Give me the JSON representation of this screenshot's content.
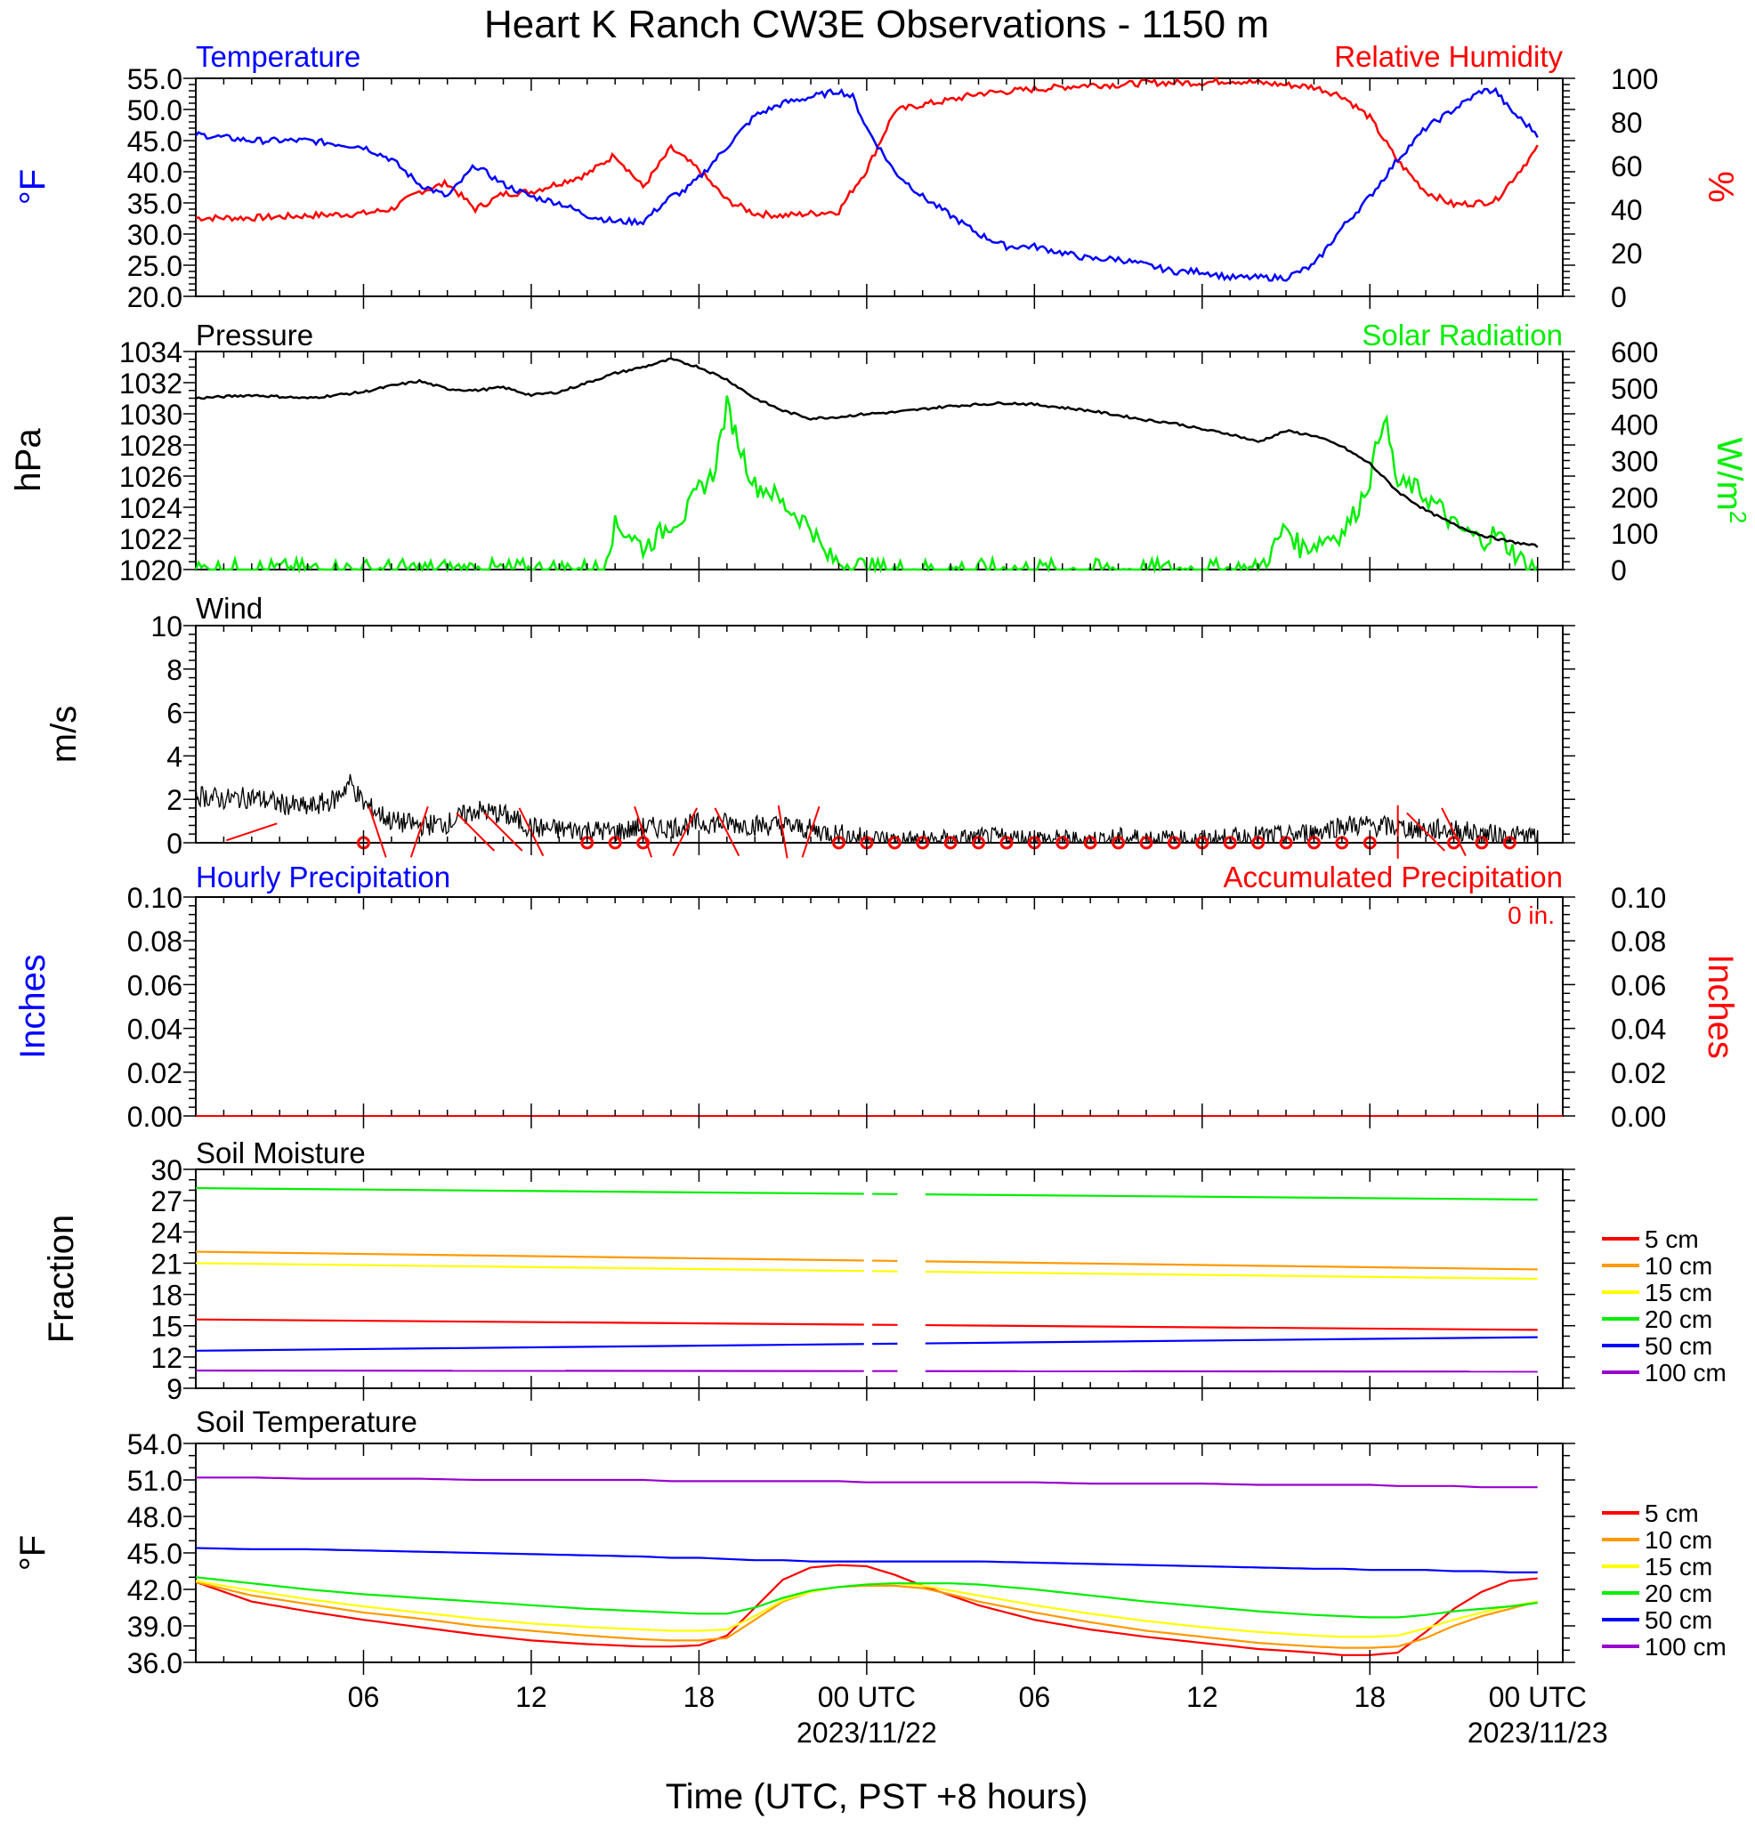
{
  "title": "Heart K Ranch CW3E Observations - 1150 m",
  "x_axis": {
    "label": "Time (UTC, PST +8 hours)",
    "ticks": [
      {
        "h": 6,
        "label": "06"
      },
      {
        "h": 12,
        "label": "12"
      },
      {
        "h": 18,
        "label": "18"
      },
      {
        "h": 24,
        "label": "00 UTC",
        "date": "2023/11/22"
      },
      {
        "h": 30,
        "label": "06"
      },
      {
        "h": 36,
        "label": "12"
      },
      {
        "h": 42,
        "label": "18"
      },
      {
        "h": 48,
        "label": "00 UTC",
        "date": "2023/11/23"
      }
    ]
  },
  "colors": {
    "temperature": "#0000ff",
    "humidity": "#ff0000",
    "pressure": "#000000",
    "solar": "#00ee00",
    "wind": "#000000",
    "wind_barb": "#ff0000",
    "hourly_precip": "#0000ff",
    "accum_precip": "#ff0000",
    "depths": [
      "#ff0000",
      "#ff9900",
      "#ffff00",
      "#00ee00",
      "#0000ff",
      "#9900cc"
    ]
  },
  "chart_data": [
    {
      "id": "temp_rh",
      "type": "line",
      "left_title": "Temperature",
      "right_title": "Relative Humidity",
      "left_unit": "°F",
      "right_unit": "%",
      "left_ylim": [
        20,
        55
      ],
      "left_ticks": [
        "55.0",
        "50.0",
        "45.0",
        "40.0",
        "35.0",
        "30.0",
        "25.0",
        "20.0"
      ],
      "right_ylim": [
        0,
        100
      ],
      "right_ticks": [
        "100",
        "80",
        "60",
        "40",
        "20",
        "0"
      ],
      "series": [
        {
          "key": "temperature",
          "hours": [
            0,
            2,
            4,
            6,
            7,
            8,
            9,
            10,
            11,
            12,
            13,
            14,
            15,
            16,
            17,
            17.5,
            18,
            19,
            20,
            21,
            22,
            23,
            23.5,
            24,
            25,
            26,
            27,
            28,
            29,
            30,
            31,
            32,
            33,
            34,
            35,
            36,
            37,
            38,
            39,
            40,
            41,
            42,
            43,
            44,
            45,
            46,
            46.5,
            47,
            48
          ],
          "values": [
            46,
            45,
            45,
            44,
            42,
            38,
            36,
            41,
            38,
            36,
            35,
            33,
            32,
            32,
            36,
            37,
            39,
            44,
            49,
            51,
            52,
            53,
            52,
            47,
            40,
            36,
            33,
            30,
            28,
            28,
            27,
            26,
            26,
            25,
            24,
            24,
            23,
            23,
            23,
            25,
            31,
            36,
            42,
            47,
            50,
            53,
            53,
            50,
            46
          ]
        },
        {
          "key": "humidity",
          "hours": [
            0,
            2,
            4,
            6,
            7,
            8,
            9,
            10,
            11,
            12,
            13,
            14,
            15,
            16,
            17,
            17.5,
            18,
            19,
            20,
            21,
            22,
            23,
            23.5,
            24,
            25,
            26,
            27,
            28,
            29,
            30,
            31,
            32,
            33,
            34,
            35,
            36,
            37,
            38,
            39,
            40,
            41,
            42,
            43,
            44,
            45,
            46,
            46.5,
            47,
            48
          ],
          "values": [
            36,
            36,
            37,
            38,
            40,
            48,
            52,
            40,
            47,
            48,
            52,
            56,
            65,
            50,
            68,
            63,
            58,
            44,
            38,
            37,
            38,
            39,
            49,
            58,
            85,
            88,
            90,
            93,
            94,
            95,
            96,
            97,
            97,
            98,
            98,
            98,
            99,
            98,
            97,
            96,
            92,
            82,
            62,
            48,
            42,
            43,
            44,
            52,
            68
          ]
        }
      ]
    },
    {
      "id": "pressure_solar",
      "type": "line",
      "left_title": "Pressure",
      "right_title": "Solar Radiation",
      "left_unit": "hPa",
      "right_unit": "W/m",
      "right_unit_sup": "2",
      "left_ylim": [
        1020,
        1034
      ],
      "left_ticks": [
        "1034",
        "1032",
        "1030",
        "1028",
        "1026",
        "1024",
        "1022",
        "1020"
      ],
      "right_ylim": [
        0,
        600
      ],
      "right_ticks": [
        "600",
        "500",
        "400",
        "300",
        "200",
        "100",
        "0"
      ],
      "series": [
        {
          "key": "pressure",
          "hours": [
            0,
            2,
            4,
            6,
            7,
            8,
            9,
            10,
            11,
            12,
            13,
            14,
            15,
            16,
            17,
            18,
            19,
            20,
            21,
            22,
            23,
            24,
            25,
            26,
            27,
            28,
            29,
            30,
            31,
            32,
            33,
            34,
            35,
            36,
            37,
            38,
            39,
            40,
            41,
            42,
            43,
            44,
            45,
            46,
            47,
            48
          ],
          "values": [
            1031.0,
            1031.2,
            1031.0,
            1031.4,
            1031.8,
            1032.1,
            1031.6,
            1031.5,
            1031.7,
            1031.2,
            1031.4,
            1032.0,
            1032.6,
            1033.0,
            1033.5,
            1033.0,
            1032.2,
            1031.0,
            1030.2,
            1029.7,
            1029.8,
            1030.0,
            1030.1,
            1030.3,
            1030.5,
            1030.6,
            1030.7,
            1030.6,
            1030.4,
            1030.2,
            1029.9,
            1029.6,
            1029.4,
            1029.0,
            1028.7,
            1028.2,
            1028.9,
            1028.6,
            1027.9,
            1026.8,
            1025.0,
            1023.8,
            1022.9,
            1022.2,
            1021.8,
            1021.5
          ]
        },
        {
          "key": "solar",
          "hours": [
            0,
            14.5,
            15,
            15.5,
            16,
            16.5,
            17,
            17.5,
            18,
            18.5,
            19,
            19.5,
            20,
            20.5,
            21,
            21.5,
            22,
            22.5,
            23,
            23.5,
            24,
            24.5,
            25,
            30,
            38,
            38.5,
            39,
            39.5,
            40,
            40.5,
            41,
            41.5,
            42,
            42.5,
            43,
            43.5,
            44,
            44.5,
            45,
            45.5,
            46,
            46.5,
            47,
            47.5,
            48
          ],
          "values": [
            0,
            0,
            120,
            100,
            60,
            90,
            130,
            150,
            220,
            260,
            450,
            330,
            230,
            220,
            180,
            150,
            120,
            40,
            20,
            15,
            5,
            0,
            0,
            0,
            0,
            50,
            120,
            60,
            70,
            90,
            100,
            160,
            250,
            430,
            230,
            230,
            200,
            170,
            120,
            100,
            80,
            100,
            60,
            20,
            0
          ]
        }
      ]
    },
    {
      "id": "wind",
      "type": "line",
      "title": "Wind",
      "unit": "m/s",
      "ylim": [
        0,
        10
      ],
      "ticks": [
        "10",
        "8",
        "6",
        "4",
        "2",
        "0"
      ],
      "speed_hours": [
        0,
        1,
        2,
        3,
        4,
        5,
        5.5,
        6,
        7,
        8,
        9,
        10,
        11,
        12,
        13,
        14,
        15,
        16,
        17,
        18,
        19,
        20,
        21,
        22,
        23,
        24,
        25,
        26,
        27,
        28,
        29,
        30,
        31,
        32,
        33,
        34,
        35,
        36,
        37,
        38,
        39,
        40,
        41,
        42,
        43,
        44,
        45,
        46,
        47,
        48
      ],
      "speed_values": [
        2.2,
        2.0,
        2.1,
        1.8,
        1.6,
        2.0,
        2.8,
        1.8,
        1.0,
        0.8,
        0.9,
        1.5,
        1.3,
        0.7,
        0.6,
        0.6,
        0.5,
        0.7,
        0.7,
        0.9,
        0.9,
        0.8,
        0.8,
        0.6,
        0.4,
        0.2,
        0.1,
        0.1,
        0.1,
        0.2,
        0.2,
        0.2,
        0.1,
        0.1,
        0.2,
        0.2,
        0.1,
        0.1,
        0.2,
        0.3,
        0.3,
        0.5,
        0.8,
        0.8,
        0.7,
        0.6,
        0.6,
        0.4,
        0.3,
        0.3
      ],
      "calm_hours": [
        6,
        14,
        15,
        16,
        23,
        24,
        25,
        26,
        27,
        28,
        29,
        30,
        31,
        32,
        33,
        34,
        35,
        36,
        37,
        38,
        39,
        40,
        41,
        42,
        45,
        46,
        47
      ],
      "barbs": [
        {
          "h": 2,
          "dx": 3,
          "dy": -1
        },
        {
          "h": 6.5,
          "dx": 1,
          "dy": 3
        },
        {
          "h": 8,
          "dx": 1,
          "dy": -3
        },
        {
          "h": 10,
          "dx": 2,
          "dy": 2
        },
        {
          "h": 11,
          "dx": 2,
          "dy": 2
        },
        {
          "h": 12,
          "dx": -1,
          "dy": -2
        },
        {
          "h": 16,
          "dx": -1,
          "dy": -3
        },
        {
          "h": 17.5,
          "dx": -1,
          "dy": 2
        },
        {
          "h": 19,
          "dx": 1,
          "dy": 2
        },
        {
          "h": 21,
          "dx": 0.5,
          "dy": 3
        },
        {
          "h": 22,
          "dx": 1,
          "dy": -3
        },
        {
          "h": 43,
          "dx": 0,
          "dy": 3
        },
        {
          "h": 44,
          "dx": 2,
          "dy": 2
        },
        {
          "h": 45,
          "dx": 1,
          "dy": 2
        }
      ]
    },
    {
      "id": "precip",
      "type": "line",
      "left_title": "Hourly Precipitation",
      "right_title": "Accumulated Precipitation",
      "accum_label": "0 in.",
      "left_unit": "Inches",
      "right_unit": "Inches",
      "ylim": [
        0,
        0.1
      ],
      "ticks": [
        "0.10",
        "0.08",
        "0.06",
        "0.04",
        "0.02",
        "0.00"
      ],
      "hourly_value": 0,
      "accum_value": 0
    },
    {
      "id": "soil_moisture",
      "type": "line",
      "title": "Soil Moisture",
      "unit": "Fraction",
      "ylim": [
        9,
        30
      ],
      "ticks": [
        "30",
        "27",
        "24",
        "21",
        "18",
        "15",
        "12",
        "9"
      ],
      "gap_hours": [
        23.9,
        26.1
      ],
      "series": [
        {
          "name": "5 cm",
          "start": 15.6,
          "end": 14.6
        },
        {
          "name": "10 cm",
          "start": 22.1,
          "end": 20.4
        },
        {
          "name": "15 cm",
          "start": 21.0,
          "end": 19.5
        },
        {
          "name": "20 cm",
          "start": 28.2,
          "end": 27.1
        },
        {
          "name": "50 cm",
          "start": 12.6,
          "end": 13.9
        },
        {
          "name": "100 cm",
          "start": 10.7,
          "end": 10.6
        }
      ]
    },
    {
      "id": "soil_temperature",
      "type": "line",
      "title": "Soil Temperature",
      "unit": "°F",
      "ylim": [
        36,
        54
      ],
      "ticks": [
        "54.0",
        "51.0",
        "48.0",
        "45.0",
        "42.0",
        "39.0",
        "36.0"
      ],
      "hours": [
        0,
        2,
        4,
        6,
        8,
        10,
        12,
        14,
        16,
        17,
        18,
        19,
        20,
        21,
        22,
        23,
        24,
        25,
        26,
        27,
        28,
        30,
        32,
        34,
        36,
        38,
        40,
        41,
        42,
        43,
        44,
        45,
        46,
        47,
        48
      ],
      "series": [
        {
          "name": "5 cm",
          "values": [
            42.6,
            41.0,
            40.2,
            39.5,
            38.9,
            38.3,
            37.8,
            37.5,
            37.3,
            37.3,
            37.4,
            38.2,
            40.5,
            42.8,
            43.8,
            44.0,
            43.9,
            43.2,
            42.3,
            41.5,
            40.7,
            39.5,
            38.7,
            38.1,
            37.6,
            37.1,
            36.8,
            36.6,
            36.6,
            36.8,
            38.5,
            40.4,
            41.8,
            42.7,
            42.9
          ]
        },
        {
          "name": "10 cm",
          "values": [
            42.6,
            41.5,
            40.8,
            40.1,
            39.6,
            39.0,
            38.6,
            38.2,
            37.9,
            37.8,
            37.8,
            38.0,
            39.5,
            41.0,
            41.8,
            42.2,
            42.3,
            42.3,
            42.1,
            41.6,
            41.0,
            40.1,
            39.3,
            38.6,
            38.1,
            37.6,
            37.3,
            37.2,
            37.2,
            37.3,
            38.0,
            39.0,
            39.8,
            40.4,
            41.0
          ]
        },
        {
          "name": "15 cm",
          "values": [
            42.7,
            41.9,
            41.2,
            40.6,
            40.1,
            39.6,
            39.2,
            38.9,
            38.7,
            38.6,
            38.6,
            38.7,
            39.8,
            41.1,
            41.8,
            42.2,
            42.4,
            42.5,
            42.3,
            41.9,
            41.5,
            40.7,
            40.0,
            39.4,
            38.9,
            38.5,
            38.2,
            38.1,
            38.1,
            38.2,
            38.8,
            39.5,
            40.1,
            40.6,
            41.0
          ]
        },
        {
          "name": "20 cm",
          "values": [
            43.0,
            42.5,
            42.0,
            41.6,
            41.3,
            41.0,
            40.7,
            40.4,
            40.2,
            40.1,
            40.0,
            40.0,
            40.5,
            41.3,
            41.9,
            42.2,
            42.4,
            42.5,
            42.5,
            42.5,
            42.4,
            42.0,
            41.5,
            41.0,
            40.6,
            40.2,
            39.9,
            39.8,
            39.7,
            39.7,
            39.9,
            40.2,
            40.4,
            40.6,
            40.9
          ]
        },
        {
          "name": "50 cm",
          "values": [
            45.4,
            45.3,
            45.3,
            45.2,
            45.1,
            45.0,
            44.9,
            44.8,
            44.7,
            44.6,
            44.6,
            44.5,
            44.4,
            44.4,
            44.3,
            44.3,
            44.3,
            44.3,
            44.3,
            44.3,
            44.3,
            44.2,
            44.1,
            44.0,
            43.9,
            43.8,
            43.7,
            43.7,
            43.6,
            43.6,
            43.6,
            43.5,
            43.5,
            43.4,
            43.4
          ]
        },
        {
          "name": "100 cm",
          "values": [
            51.2,
            51.2,
            51.1,
            51.1,
            51.1,
            51.0,
            51.0,
            51.0,
            51.0,
            50.9,
            50.9,
            50.9,
            50.9,
            50.9,
            50.9,
            50.9,
            50.8,
            50.8,
            50.8,
            50.8,
            50.8,
            50.8,
            50.7,
            50.7,
            50.7,
            50.6,
            50.6,
            50.6,
            50.6,
            50.5,
            50.5,
            50.5,
            50.4,
            50.4,
            50.4
          ]
        }
      ]
    }
  ]
}
